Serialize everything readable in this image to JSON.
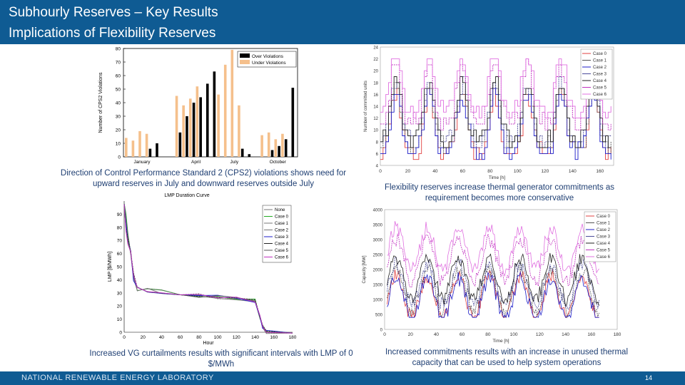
{
  "slide": {
    "title_line1": "Subhourly Reserves – Key Results",
    "title_line2": "Implications of Flexibility Reserves",
    "footer_org": "NATIONAL RENEWABLE ENERGY LABORATORY",
    "page_number": "14",
    "colors": {
      "header": "#0f5b93",
      "caption": "#1f3f73"
    }
  },
  "captions": {
    "top_left": "Direction of Control Performance Standard 2 (CPS2) violations shows need for upward reserves in July and downward reserves outside July",
    "top_right": "Flexibility reserves increase thermal generator commitments as requirement becomes more conservative",
    "bottom_left": "Increased VG curtailments results with significant intervals with LMP of 0 $/MWh",
    "bottom_right": "Increased commitments results with an increase in unused thermal capacity that can be used to help system operations"
  },
  "chart_data": [
    {
      "id": "cps2",
      "type": "bar",
      "ylabel": "Number of CPS2 Violations",
      "ylim": [
        0,
        80
      ],
      "yticks": [
        0,
        10,
        20,
        30,
        40,
        50,
        60,
        70,
        80
      ],
      "month_labels": [
        "January",
        "April",
        "July",
        "October"
      ],
      "groups": [
        {
          "month": "January",
          "over": [
            0,
            0,
            0,
            6,
            10
          ],
          "under": [
            14,
            12,
            19,
            17,
            0
          ]
        },
        {
          "month": "April",
          "over": [
            18,
            30,
            40,
            44,
            54,
            63
          ],
          "under": [
            45,
            38,
            43,
            52,
            0,
            0
          ]
        },
        {
          "month": "July",
          "over": [
            0,
            0,
            0,
            6,
            2
          ],
          "under": [
            46,
            68,
            79,
            38,
            0
          ]
        },
        {
          "month": "October",
          "over": [
            0,
            5,
            8,
            13,
            51
          ],
          "under": [
            16,
            18,
            13,
            17,
            0
          ]
        }
      ],
      "series": [
        {
          "name": "Over Violations",
          "color": "#000000"
        },
        {
          "name": "Under Violations",
          "color": "#f5c08c"
        }
      ],
      "legend": "top-right"
    },
    {
      "id": "commitments",
      "type": "line",
      "xlabel": "Time [h]",
      "ylabel": "Number of committed units",
      "xlim": [
        0,
        170
      ],
      "ylim": [
        4,
        24
      ],
      "xticks": [
        0,
        20,
        40,
        60,
        80,
        100,
        120,
        140,
        160
      ],
      "yticks": [
        4,
        6,
        8,
        10,
        12,
        14,
        16,
        18,
        20,
        22,
        24
      ],
      "series": [
        {
          "name": "Case 0",
          "color": "#e04040"
        },
        {
          "name": "Case 1",
          "color": "#555555"
        },
        {
          "name": "Case 2",
          "color": "#1c1cc8"
        },
        {
          "name": "Case 3",
          "color": "#4a4a9a"
        },
        {
          "name": "Case 4",
          "color": "#222222"
        },
        {
          "name": "Case 5",
          "color": "#c030c0"
        },
        {
          "name": "Case 6",
          "color": "#e070e0"
        }
      ],
      "legend": "top-right"
    },
    {
      "id": "lmp",
      "type": "line",
      "title": "LMP Duration Curve",
      "xlabel": "Hour",
      "ylabel": "LMP [$/MWh]",
      "xlim": [
        0,
        180
      ],
      "ylim": [
        0,
        100
      ],
      "xticks": [
        0,
        20,
        40,
        60,
        80,
        100,
        120,
        140,
        160,
        180
      ],
      "yticks": [
        0,
        10,
        20,
        30,
        40,
        50,
        60,
        70,
        80,
        90
      ],
      "series": [
        {
          "name": "None",
          "color": "#777777"
        },
        {
          "name": "Case 0",
          "color": "#22aa22"
        },
        {
          "name": "Case 1",
          "color": "#777777"
        },
        {
          "name": "Case 2",
          "color": "#777777"
        },
        {
          "name": "Case 3",
          "color": "#1c1cc8"
        },
        {
          "name": "Case 4",
          "color": "#222222"
        },
        {
          "name": "Case 5",
          "color": "#555555"
        },
        {
          "name": "Case 6",
          "color": "#c030c0"
        }
      ],
      "legend": "top-right"
    },
    {
      "id": "capacity",
      "type": "line",
      "xlabel": "Time [h]",
      "ylabel": "Capacity [MW]",
      "xlim": [
        0,
        180
      ],
      "ylim": [
        0,
        4000
      ],
      "xticks": [
        0,
        20,
        40,
        60,
        80,
        100,
        120,
        140,
        160,
        180
      ],
      "yticks": [
        0,
        500,
        1000,
        1500,
        2000,
        2500,
        3000,
        3500,
        4000
      ],
      "series": [
        {
          "name": "Case 0",
          "color": "#e04040"
        },
        {
          "name": "Case 1",
          "color": "#555555"
        },
        {
          "name": "Case 2",
          "color": "#1c1cc8"
        },
        {
          "name": "Case 3",
          "color": "#4a4a9a"
        },
        {
          "name": "Case 4",
          "color": "#222222"
        },
        {
          "name": "Case 5",
          "color": "#c030c0"
        },
        {
          "name": "Case 6",
          "color": "#e070e0"
        }
      ],
      "legend": "top-right"
    }
  ]
}
